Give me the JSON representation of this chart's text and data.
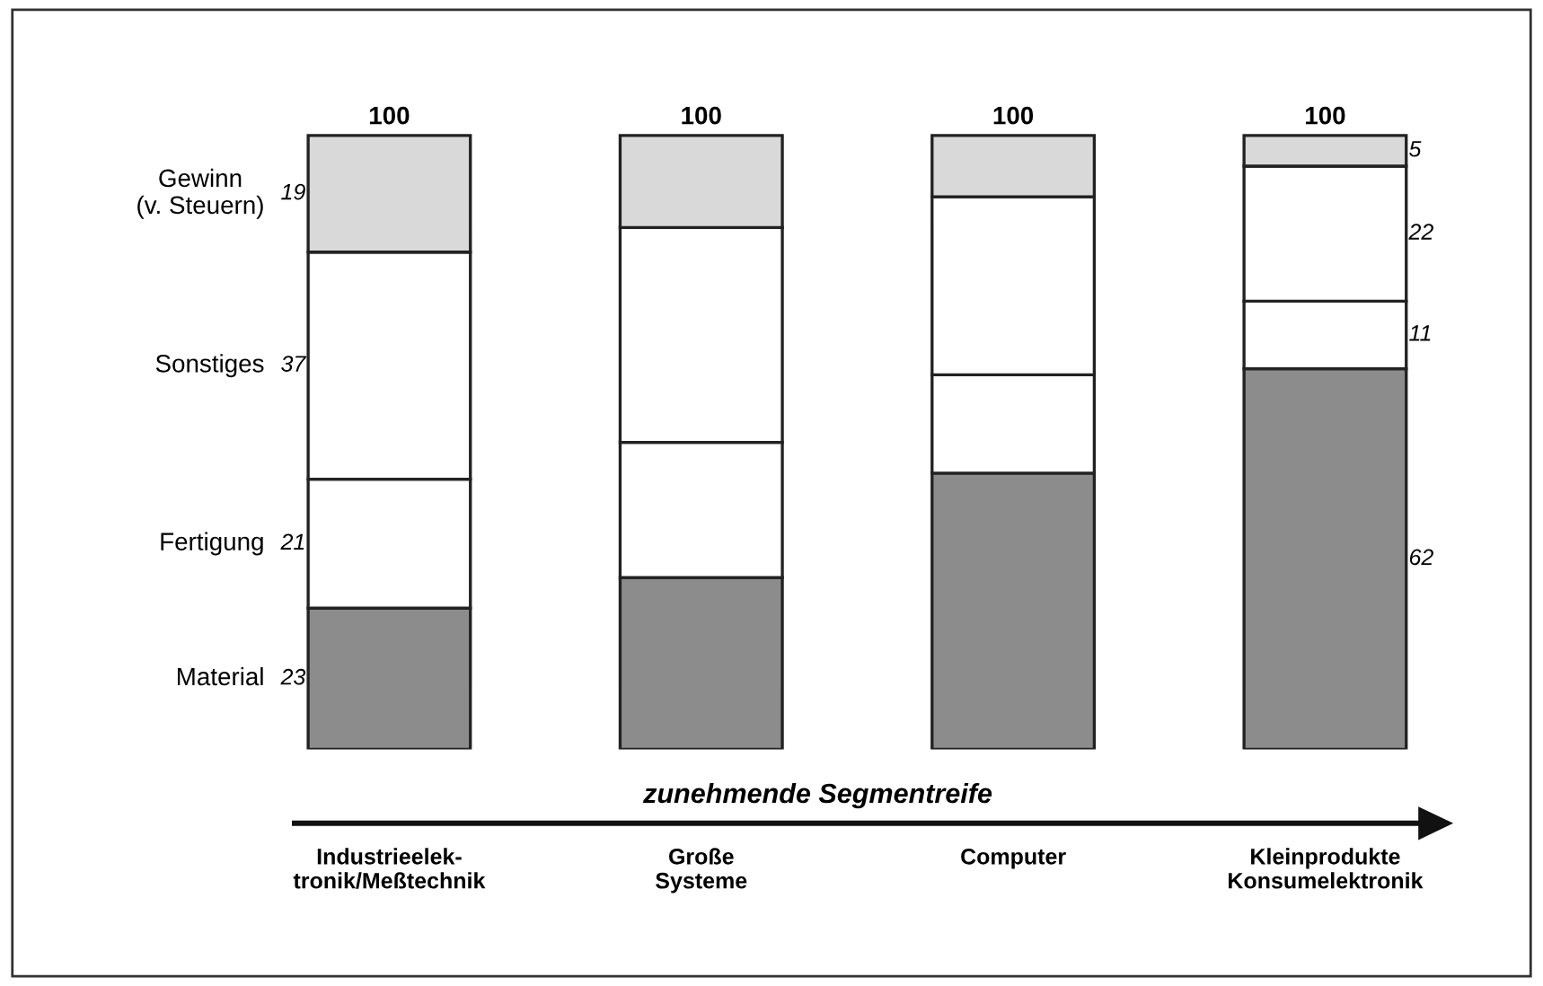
{
  "chart_data": {
    "type": "bar",
    "stacked": true,
    "xlabel": "zunehmende Segmentreife",
    "categories": [
      "Industrieelek-\ntronik/Meßtechnik",
      "Große\nSysteme",
      "Computer",
      "Kleinprodukte\nKonsumelektronik"
    ],
    "series": [
      {
        "name": "Material",
        "color": "#8c8c8c",
        "values": [
          23,
          28,
          45,
          62
        ],
        "value_labels": [
          "23",
          null,
          null,
          "62"
        ]
      },
      {
        "name": "Fertigung",
        "color": "#ffffff",
        "values": [
          21,
          22,
          16,
          11
        ],
        "value_labels": [
          "21",
          null,
          null,
          "11"
        ]
      },
      {
        "name": "Sonstiges",
        "color": "#ffffff",
        "values": [
          37,
          35,
          29,
          22
        ],
        "value_labels": [
          "37",
          null,
          null,
          "22"
        ]
      },
      {
        "name": "Gewinn\n(v. Steuern)",
        "color": "#d9d9d9",
        "values": [
          19,
          15,
          10,
          5
        ],
        "value_labels": [
          "19",
          null,
          null,
          "5"
        ]
      }
    ],
    "totals": [
      "100",
      "100",
      "100",
      "100"
    ],
    "legend": false
  }
}
